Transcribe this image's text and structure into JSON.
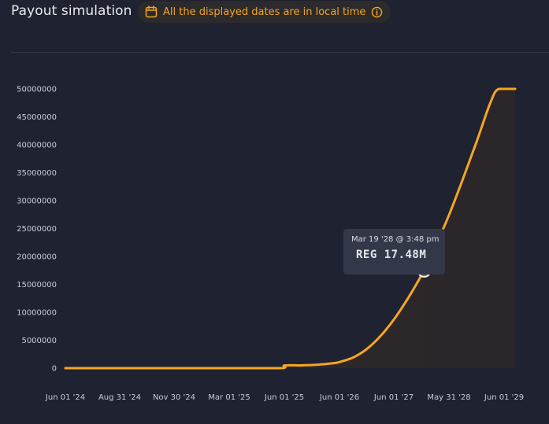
{
  "header": {
    "title": "Payout simulation",
    "notice": "All the displayed dates are in local time",
    "notice_icon": "calendar-icon",
    "notice_info_icon": "info-icon"
  },
  "colors": {
    "accent": "#f5a623",
    "background": "#1f2230",
    "tooltip_bg": "#333849"
  },
  "tooltip": {
    "date": "Mar 19 '28 @ 3:48 pm",
    "value": "REG 17.48M"
  },
  "chart_data": {
    "type": "area",
    "title": "",
    "xlabel": "",
    "ylabel": "",
    "grid": false,
    "ylim": [
      0,
      50000000
    ],
    "yticks": [
      "0",
      "5000000",
      "10000000",
      "15000000",
      "20000000",
      "25000000",
      "30000000",
      "35000000",
      "40000000",
      "45000000",
      "50000000"
    ],
    "xticks": [
      "Jun 01 '24",
      "Aug 31 '24",
      "Nov 30 '24",
      "Mar 01 '25",
      "Jun 01 '25",
      "Jun 01 '26",
      "Jun 01 '27",
      "May 31 '28",
      "Jun 01 '29"
    ],
    "series": [
      {
        "points": [
          [
            0,
            0
          ],
          [
            1,
            0
          ],
          [
            2,
            0
          ],
          [
            3,
            0
          ],
          [
            3.94,
            0
          ],
          [
            4.0,
            480000
          ],
          [
            4.3,
            500000
          ],
          [
            4.6,
            620000
          ],
          [
            4.9,
            900000
          ],
          [
            5.0,
            1100000
          ],
          [
            5.25,
            1900000
          ],
          [
            5.5,
            3400000
          ],
          [
            5.75,
            5700000
          ],
          [
            6.0,
            8700000
          ],
          [
            6.25,
            12400000
          ],
          [
            6.5,
            16600000
          ],
          [
            6.55,
            17480000
          ],
          [
            6.75,
            21700000
          ],
          [
            7.0,
            27400000
          ],
          [
            7.25,
            33800000
          ],
          [
            7.5,
            40500000
          ],
          [
            7.75,
            47500000
          ],
          [
            7.9,
            50000000
          ],
          [
            8.2,
            50000000
          ]
        ]
      }
    ],
    "highlight_point": [
      6.55,
      17480000
    ]
  }
}
